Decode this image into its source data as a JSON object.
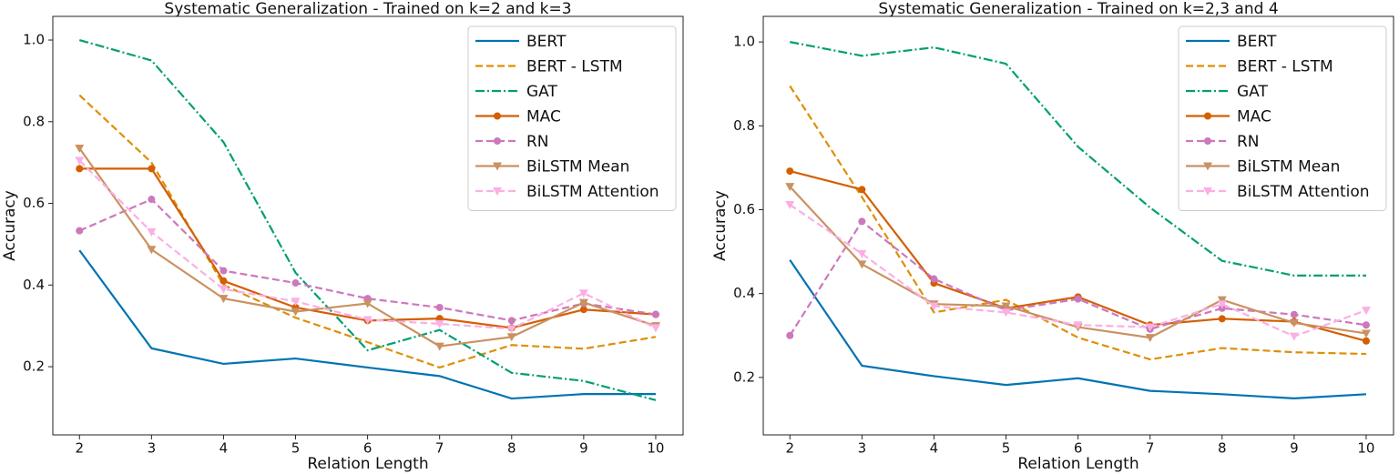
{
  "chart_data": [
    {
      "type": "line",
      "title": "Systematic Generalization - Trained on k=2 and k=3",
      "x_label": "Relation Length",
      "y_label": "Accuracy",
      "x": [
        2,
        3,
        4,
        5,
        6,
        7,
        8,
        9,
        10
      ],
      "xlim": [
        1.63,
        10.38
      ],
      "xticks": [
        2,
        3,
        4,
        5,
        6,
        7,
        8,
        9,
        10
      ],
      "ylim": [
        0.033,
        1.058
      ],
      "yticks": [
        0.2,
        0.4,
        0.6,
        0.8,
        {
          "value": 1,
          "label": "1.0"
        }
      ],
      "legend": "upper right",
      "series": [
        {
          "name": "BERT",
          "color": "#0173b2",
          "dash": "solid",
          "marker": "none",
          "values": [
            0.485,
            0.245,
            0.207,
            0.22,
            0.198,
            0.177,
            0.122,
            0.133,
            0.133
          ]
        },
        {
          "name": "BERT - LSTM",
          "color": "#de8f05",
          "dash": "dashed",
          "marker": "none",
          "values": [
            0.865,
            0.7,
            0.4,
            0.32,
            0.26,
            0.198,
            0.253,
            0.244,
            0.273
          ]
        },
        {
          "name": "GAT",
          "color": "#029e73",
          "dash": "dashdot",
          "marker": "none",
          "values": [
            1.0,
            0.95,
            0.75,
            0.43,
            0.24,
            0.29,
            0.185,
            0.165,
            0.118
          ]
        },
        {
          "name": "MAC",
          "color": "#d55e00",
          "dash": "solid",
          "marker": "circle",
          "values": [
            0.685,
            0.685,
            0.41,
            0.345,
            0.313,
            0.318,
            0.295,
            0.34,
            0.328
          ]
        },
        {
          "name": "RN",
          "color": "#cc78bc",
          "dash": "dashed",
          "marker": "circle",
          "values": [
            0.533,
            0.61,
            0.435,
            0.405,
            0.367,
            0.345,
            0.313,
            0.355,
            0.328
          ]
        },
        {
          "name": "BiLSTM Mean",
          "color": "#ca9161",
          "dash": "solid",
          "marker": "triangle-down",
          "values": [
            0.735,
            0.487,
            0.367,
            0.335,
            0.355,
            0.25,
            0.273,
            0.357,
            0.3
          ]
        },
        {
          "name": "BiLSTM Attention",
          "color": "#fbafe4",
          "dash": "dashed",
          "marker": "triangle-down",
          "values": [
            0.705,
            0.53,
            0.39,
            0.36,
            0.315,
            0.305,
            0.293,
            0.38,
            0.295
          ]
        }
      ]
    },
    {
      "type": "line",
      "title": "Systematic Generalization - Trained on k=2,3 and 4",
      "x_label": "Relation Length",
      "y_label": "Accuracy",
      "x": [
        2,
        3,
        4,
        5,
        6,
        7,
        8,
        9,
        10
      ],
      "xlim": [
        1.63,
        10.38
      ],
      "xticks": [
        2,
        3,
        4,
        5,
        6,
        7,
        8,
        9,
        10
      ],
      "ylim": [
        0.063,
        1.061
      ],
      "yticks": [
        0.2,
        0.4,
        0.6,
        0.8,
        {
          "value": 1,
          "label": "1.0"
        }
      ],
      "legend": "upper right",
      "series": [
        {
          "name": "BERT",
          "color": "#0173b2",
          "dash": "solid",
          "marker": "none",
          "values": [
            0.48,
            0.228,
            0.203,
            0.182,
            0.198,
            0.168,
            0.16,
            0.15,
            0.16
          ]
        },
        {
          "name": "BERT - LSTM",
          "color": "#de8f05",
          "dash": "dashed",
          "marker": "none",
          "values": [
            0.895,
            0.63,
            0.355,
            0.385,
            0.295,
            0.243,
            0.27,
            0.26,
            0.256
          ]
        },
        {
          "name": "GAT",
          "color": "#029e73",
          "dash": "dashdot",
          "marker": "none",
          "values": [
            1.0,
            0.967,
            0.987,
            0.948,
            0.75,
            0.605,
            0.478,
            0.443,
            0.443
          ]
        },
        {
          "name": "MAC",
          "color": "#d55e00",
          "dash": "solid",
          "marker": "circle",
          "values": [
            0.692,
            0.648,
            0.425,
            0.365,
            0.392,
            0.325,
            0.34,
            0.333,
            0.287
          ]
        },
        {
          "name": "RN",
          "color": "#cc78bc",
          "dash": "dashed",
          "marker": "circle",
          "values": [
            0.3,
            0.572,
            0.435,
            0.36,
            0.387,
            0.315,
            0.365,
            0.35,
            0.325
          ]
        },
        {
          "name": "BiLSTM Mean",
          "color": "#ca9161",
          "dash": "solid",
          "marker": "triangle-down",
          "values": [
            0.655,
            0.47,
            0.375,
            0.37,
            0.32,
            0.295,
            0.385,
            0.33,
            0.305
          ]
        },
        {
          "name": "BiLSTM Attention",
          "color": "#fbafe4",
          "dash": "dashed",
          "marker": "triangle-down",
          "values": [
            0.612,
            0.495,
            0.37,
            0.355,
            0.325,
            0.32,
            0.375,
            0.298,
            0.36
          ]
        }
      ]
    }
  ]
}
